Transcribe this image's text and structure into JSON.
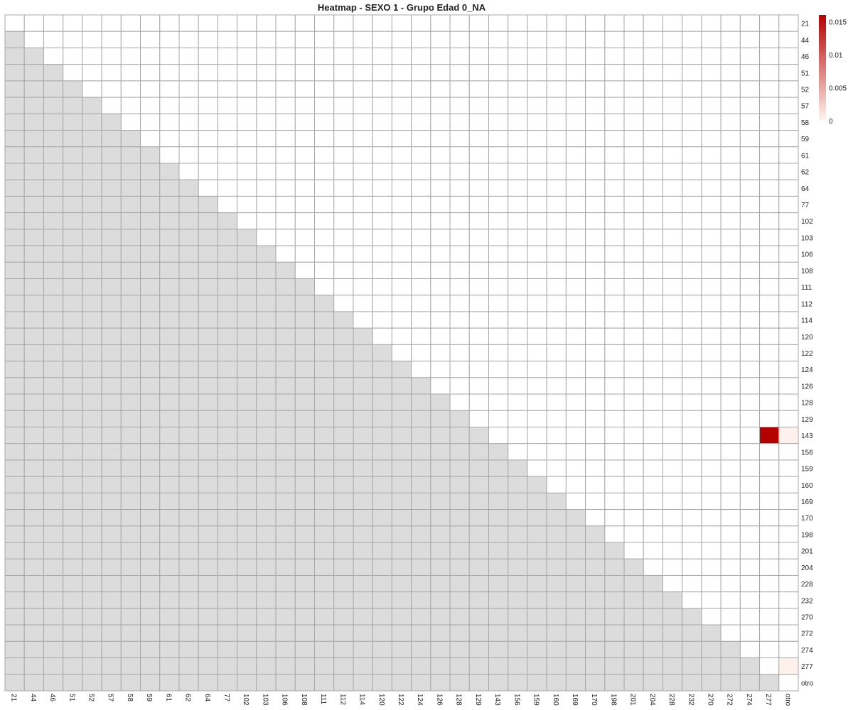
{
  "chart_data": {
    "type": "heatmap",
    "title": "Heatmap - SEXO 1 - Grupo Edad 0_NA",
    "categories": [
      "21",
      "44",
      "46",
      "51",
      "52",
      "57",
      "58",
      "59",
      "61",
      "62",
      "64",
      "77",
      "102",
      "103",
      "106",
      "108",
      "111",
      "112",
      "114",
      "120",
      "122",
      "124",
      "126",
      "128",
      "129",
      "143",
      "156",
      "159",
      "160",
      "169",
      "170",
      "198",
      "201",
      "204",
      "228",
      "232",
      "270",
      "272",
      "274",
      "277",
      "otro"
    ],
    "lower_triangle": "masked",
    "default_value": 0,
    "nonzero_cells": [
      {
        "row": "143",
        "col": "277",
        "value": 0.016
      },
      {
        "row": "143",
        "col": "otro",
        "value": 0.0003
      },
      {
        "row": "277",
        "col": "otro",
        "value": 0.0003
      }
    ],
    "color_scale": {
      "min": 0,
      "max": 0.016,
      "low_color": "#fff5f0",
      "high_color": "#b30000",
      "mask_color": "#dcdcdc",
      "zero_color": "#ffffff",
      "ticks": [
        0,
        0.005,
        0.01,
        0.015
      ],
      "tick_labels": [
        "0",
        "0.005",
        "0.01",
        "0.015"
      ]
    },
    "legend_placement": "top-right",
    "grid_color": "#a8a8a8"
  }
}
